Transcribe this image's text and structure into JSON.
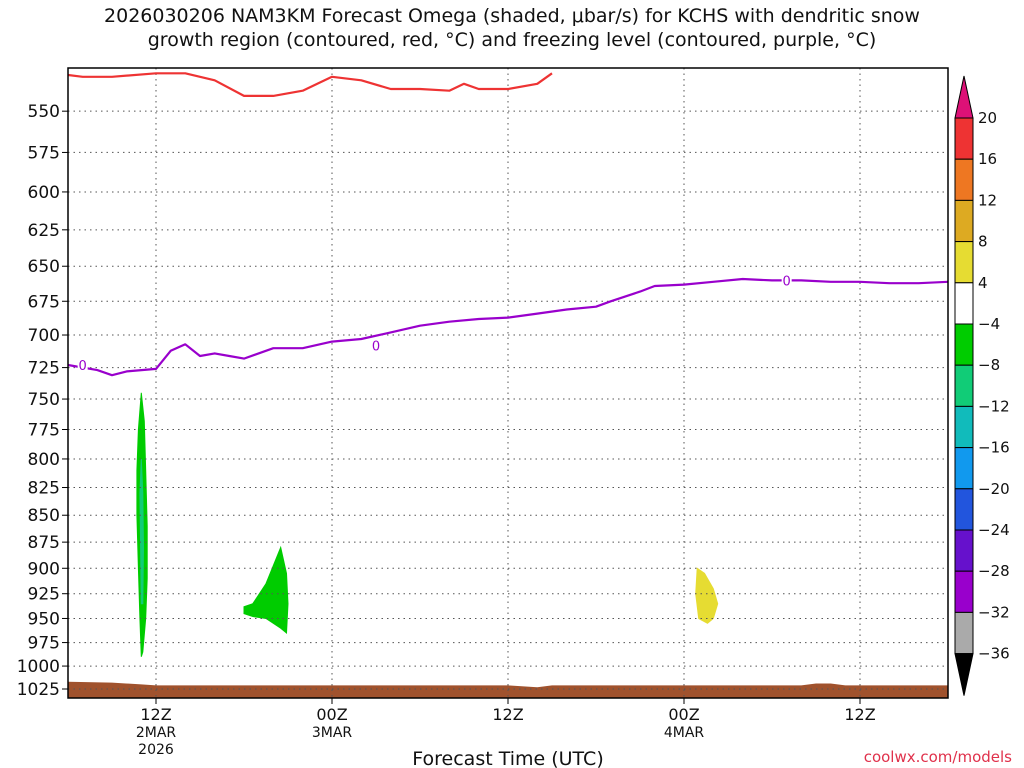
{
  "title_line1": "2026030206 NAM3KM Forecast Omega (shaded, μbar/s) for KCHS with dendritic snow",
  "title_line2": "growth region (contoured, red, °C) and freezing level (contoured, purple, °C)",
  "site_credit": "coolwx.com/models",
  "chart_data": {
    "type": "contour",
    "xlabel": "Forecast Time (UTC)",
    "ylabel": "",
    "x_range_hours_from_init": [
      0,
      60
    ],
    "y_range_hpa": [
      1035,
      525
    ],
    "y_scale": "log-pressure",
    "grid": true,
    "x_ticks": [
      {
        "hour": 6,
        "lines": [
          "12Z",
          "2MAR",
          "2026"
        ]
      },
      {
        "hour": 18,
        "lines": [
          "00Z",
          "3MAR"
        ]
      },
      {
        "hour": 30,
        "lines": [
          "12Z"
        ]
      },
      {
        "hour": 42,
        "lines": [
          "00Z",
          "4MAR"
        ]
      },
      {
        "hour": 54,
        "lines": [
          "12Z"
        ]
      }
    ],
    "y_ticks": [
      "550",
      "575",
      "600",
      "625",
      "650",
      "675",
      "700",
      "725",
      "750",
      "775",
      "800",
      "825",
      "850",
      "875",
      "900",
      "925",
      "950",
      "975",
      "1000",
      "1025"
    ],
    "y_tick_values": [
      550,
      575,
      600,
      625,
      650,
      675,
      700,
      725,
      750,
      775,
      800,
      825,
      850,
      875,
      900,
      925,
      950,
      975,
      1000,
      1025
    ],
    "freezing_level": {
      "label": "0",
      "color": "#9900cc",
      "points": [
        [
          0,
          723
        ],
        [
          2,
          727
        ],
        [
          3,
          731
        ],
        [
          4,
          728
        ],
        [
          6,
          726
        ],
        [
          7,
          712
        ],
        [
          8,
          707
        ],
        [
          9,
          716
        ],
        [
          10,
          714
        ],
        [
          11,
          716
        ],
        [
          12,
          718
        ],
        [
          14,
          710
        ],
        [
          16,
          710
        ],
        [
          18,
          705
        ],
        [
          20,
          703
        ],
        [
          22,
          698
        ],
        [
          24,
          693
        ],
        [
          26,
          690
        ],
        [
          28,
          688
        ],
        [
          30,
          687
        ],
        [
          32,
          684
        ],
        [
          34,
          681
        ],
        [
          36,
          679
        ],
        [
          37,
          675
        ],
        [
          39,
          668
        ],
        [
          40,
          664
        ],
        [
          42,
          663
        ],
        [
          44,
          661
        ],
        [
          46,
          659
        ],
        [
          48,
          660
        ],
        [
          50,
          660
        ],
        [
          52,
          661
        ],
        [
          54,
          661
        ],
        [
          56,
          662
        ],
        [
          58,
          662
        ],
        [
          60,
          661
        ]
      ]
    },
    "freezing_level_label_positions": [
      [
        1,
        723
      ],
      [
        21,
        708
      ],
      [
        49,
        660
      ]
    ],
    "dgz_top_minus12": {
      "color": "#ee3333",
      "points": [
        [
          0,
          529
        ],
        [
          1,
          530
        ],
        [
          3,
          530
        ],
        [
          6,
          528
        ],
        [
          8,
          528
        ],
        [
          10,
          532
        ],
        [
          12,
          541
        ],
        [
          14,
          541
        ],
        [
          16,
          538
        ],
        [
          17,
          534
        ],
        [
          18,
          530
        ],
        [
          20,
          532
        ],
        [
          22,
          537
        ],
        [
          24,
          537
        ],
        [
          26,
          538
        ],
        [
          27,
          534
        ],
        [
          28,
          537
        ],
        [
          30,
          537
        ],
        [
          32,
          534
        ],
        [
          33,
          528
        ]
      ]
    },
    "omega_contours": [
      {
        "fill": "#00cc00",
        "level_min": -8,
        "level_max": -4,
        "points": [
          [
            5,
            990
          ],
          [
            4.9,
            950
          ],
          [
            4.8,
            900
          ],
          [
            4.7,
            850
          ],
          [
            4.7,
            810
          ],
          [
            4.8,
            775
          ],
          [
            5,
            745
          ],
          [
            5.2,
            768
          ],
          [
            5.3,
            810
          ],
          [
            5.4,
            860
          ],
          [
            5.4,
            910
          ],
          [
            5.3,
            950
          ],
          [
            5.1,
            985
          ]
        ]
      },
      {
        "fill": "#11cc77",
        "level_min": -12,
        "level_max": -8,
        "points": [
          [
            5,
            935
          ],
          [
            4.95,
            880
          ],
          [
            4.9,
            830
          ],
          [
            5,
            800
          ],
          [
            5.1,
            830
          ],
          [
            5.15,
            880
          ],
          [
            5.1,
            935
          ]
        ]
      },
      {
        "fill": "#00cc00",
        "level_min": -8,
        "level_max": -4,
        "points": [
          [
            12,
            938
          ],
          [
            12.6,
            935
          ],
          [
            13.5,
            915
          ],
          [
            14.5,
            880
          ],
          [
            14.9,
            905
          ],
          [
            15,
            935
          ],
          [
            14.9,
            965
          ],
          [
            14.5,
            960
          ],
          [
            13.5,
            950
          ],
          [
            12.6,
            948
          ],
          [
            12,
            945
          ]
        ]
      },
      {
        "fill": "#e6dc32",
        "level_min": 4,
        "level_max": 8,
        "points": [
          [
            43,
            950
          ],
          [
            42.8,
            925
          ],
          [
            42.9,
            900
          ],
          [
            43.4,
            905
          ],
          [
            44,
            920
          ],
          [
            44.3,
            935
          ],
          [
            44,
            950
          ],
          [
            43.6,
            955
          ]
        ]
      }
    ],
    "terrain_fill": "#a0522d",
    "terrain_top_hpa": [
      [
        0,
        1017
      ],
      [
        3,
        1018
      ],
      [
        5,
        1020
      ],
      [
        6,
        1021
      ],
      [
        30,
        1021
      ],
      [
        32,
        1023
      ],
      [
        33,
        1021
      ],
      [
        36,
        1021
      ],
      [
        50,
        1021
      ],
      [
        51,
        1019
      ],
      [
        52,
        1019
      ],
      [
        53,
        1021
      ],
      [
        60,
        1021
      ]
    ],
    "colorbar": {
      "levels": [
        "20",
        "16",
        "12",
        "8",
        "4",
        "−4",
        "−8",
        "−12",
        "−16",
        "−20",
        "−24",
        "−28",
        "−32",
        "−36"
      ],
      "colors": [
        "#dd1177",
        "#ee3333",
        "#ee7722",
        "#ddaa22",
        "#e6dc32",
        "#ffffff",
        "#00cc00",
        "#11cc77",
        "#11bbbb",
        "#1199ee",
        "#2255dd",
        "#6611cc",
        "#9900cc",
        "#aaaaaa",
        "#000000"
      ]
    }
  }
}
